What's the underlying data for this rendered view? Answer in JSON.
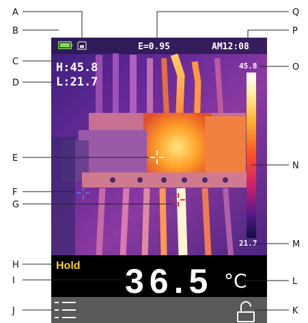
{
  "status_bar": {
    "battery_icon": "battery-icon",
    "storage_icon": "sd-card-icon",
    "emissivity": "E=0.95",
    "time": "AM12:08"
  },
  "readouts": {
    "high": "H:45.8",
    "low": "L:21.7"
  },
  "scale": {
    "max": "45.8",
    "min": "21.7"
  },
  "bottom_panel": {
    "hold_label": "Hold",
    "temperature": "36.5",
    "unit": "°C"
  },
  "toolbar": {
    "menu_icon": "menu-list-icon",
    "lock_icon": "unlock-icon"
  },
  "callouts": {
    "A": "A",
    "B": "B",
    "C": "C",
    "D": "D",
    "E": "E",
    "F": "F",
    "G": "G",
    "H": "H",
    "I": "I",
    "J": "J",
    "K": "K",
    "L": "L",
    "M": "M",
    "N": "N",
    "O": "O",
    "P": "P",
    "Q": "Q"
  },
  "colors": {
    "hold": "#f2d21b",
    "toolbar_bg": "#595959",
    "panel_bg": "#000000"
  }
}
